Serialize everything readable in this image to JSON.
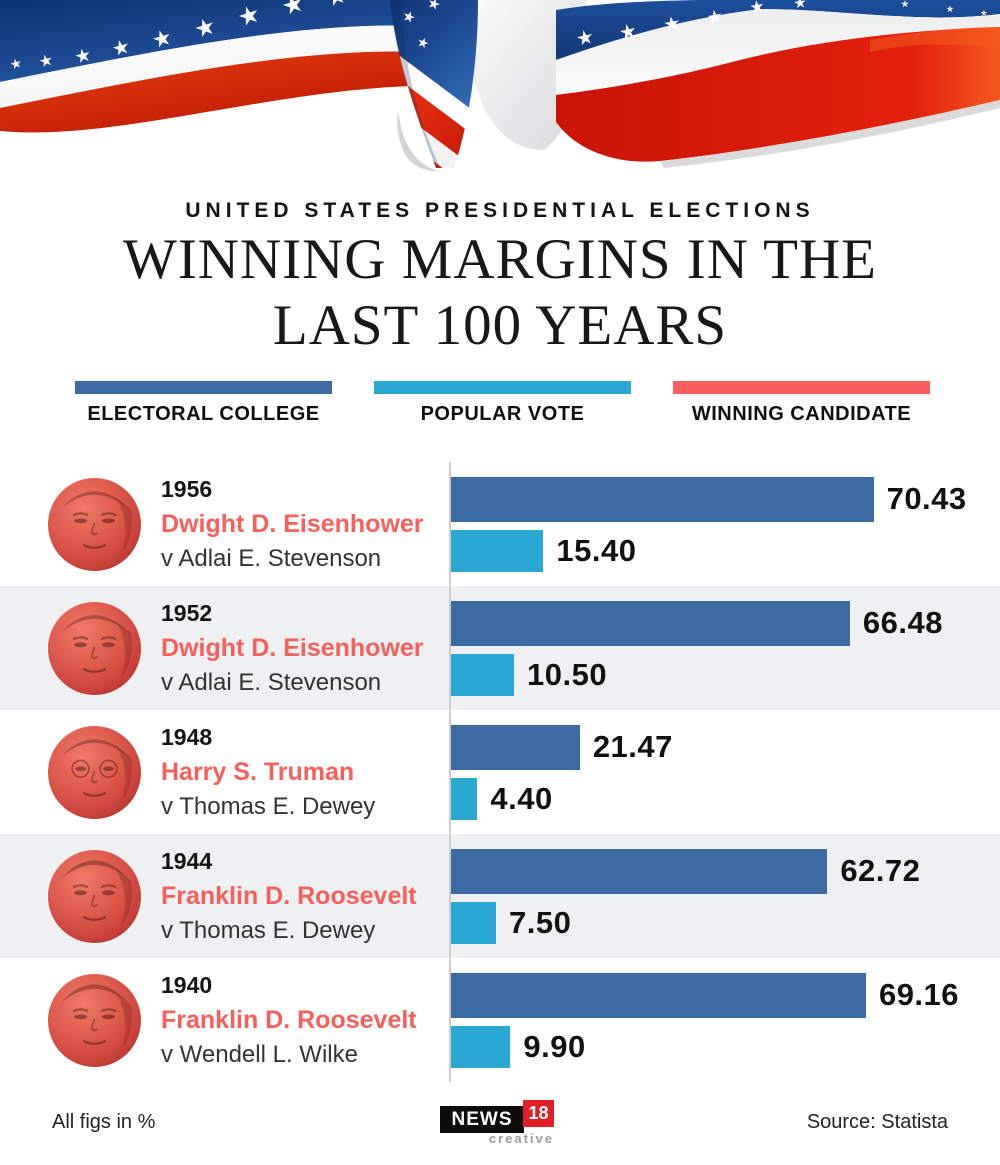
{
  "header": {
    "kicker": "UNITED STATES PRESIDENTIAL ELECTIONS",
    "title_line1": "WINNING MARGINS IN THE",
    "title_line2": "LAST 100 YEARS"
  },
  "legend": [
    {
      "label": "ELECTORAL COLLEGE",
      "color": "#3a6ba3"
    },
    {
      "label": "POPULAR VOTE",
      "color": "#29a8d3"
    },
    {
      "label": "WINNING CANDIDATE",
      "color": "#f95f5f"
    }
  ],
  "rows": [
    {
      "year": "1956",
      "winner": "Dwight D. Eisenhower",
      "opponent": "v Adlai E. Stevenson",
      "electoral_label": "70.43",
      "popular_label": "15.40"
    },
    {
      "year": "1952",
      "winner": "Dwight D. Eisenhower",
      "opponent": "v Adlai E. Stevenson",
      "electoral_label": "66.48",
      "popular_label": "10.50"
    },
    {
      "year": "1948",
      "winner": "Harry S. Truman",
      "opponent": "v Thomas E. Dewey",
      "electoral_label": "21.47",
      "popular_label": "4.40"
    },
    {
      "year": "1944",
      "winner": "Franklin D. Roosevelt",
      "opponent": "v Thomas E. Dewey",
      "electoral_label": "62.72",
      "popular_label": "7.50"
    },
    {
      "year": "1940",
      "winner": "Franklin D. Roosevelt",
      "opponent": "v Wendell L. Wilke",
      "electoral_label": "69.16",
      "popular_label": "9.90"
    }
  ],
  "chart_data": {
    "type": "bar",
    "orientation": "horizontal",
    "title": "Winning margins in the last 100 years",
    "subtitle": "United States presidential elections",
    "categories": [
      "1956",
      "1952",
      "1948",
      "1944",
      "1940"
    ],
    "series": [
      {
        "name": "ELECTORAL COLLEGE",
        "color": "#3a6ba3",
        "values": [
          70.43,
          66.48,
          21.47,
          62.72,
          69.16
        ]
      },
      {
        "name": "POPULAR VOTE",
        "color": "#29a8d3",
        "values": [
          15.4,
          10.5,
          4.4,
          7.5,
          9.9
        ]
      }
    ],
    "unit": "%",
    "xlim": [
      0,
      75
    ],
    "grid": false,
    "legend_position": "top",
    "note": "All figs in %"
  },
  "footer": {
    "note": "All figs in %",
    "logo_news": "NEWS",
    "logo_18": "18",
    "logo_creative": "creative",
    "source": "Source: Statista"
  }
}
